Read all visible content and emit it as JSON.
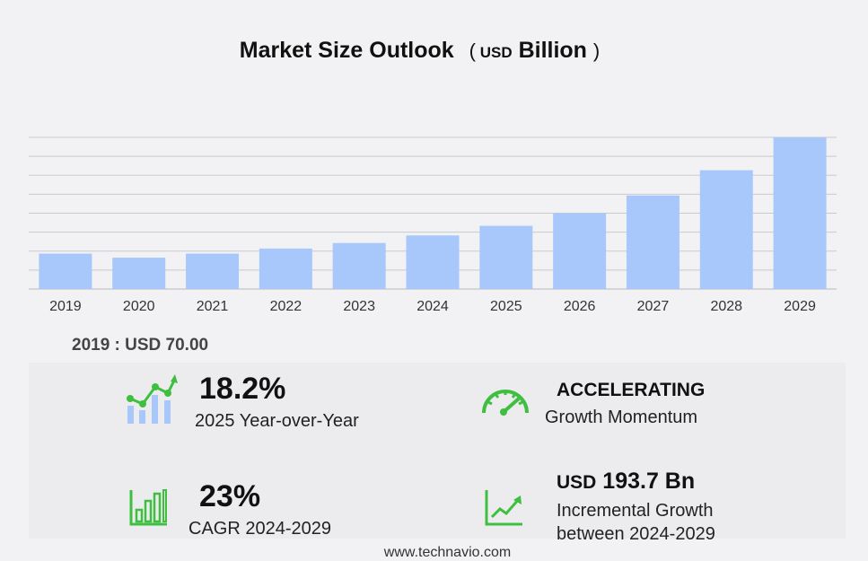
{
  "title": {
    "main": "Market Size Outlook",
    "open_paren": "(",
    "unit_small": "USD",
    "unit_big": "Billion",
    "close_paren": ")"
  },
  "chart_data": {
    "type": "bar",
    "categories": [
      "2019",
      "2020",
      "2021",
      "2022",
      "2023",
      "2024",
      "2025",
      "2026",
      "2027",
      "2028",
      "2029"
    ],
    "values": [
      70.0,
      62.0,
      70.0,
      80.0,
      91.0,
      106.0,
      125.0,
      150.0,
      185.0,
      235.0,
      300.0
    ],
    "ylim": [
      0,
      300
    ],
    "grid": true,
    "bar_color": "#a8c8fb",
    "grid_color": "#c9c9d0"
  },
  "base_year_label": "2019 : USD  70.00",
  "stats": {
    "yoy": {
      "value": "18.2%",
      "label": "2025 Year-over-Year",
      "icon": "growth-bar-chart-icon"
    },
    "momentum": {
      "value": "ACCELERATING",
      "label": "Growth Momentum",
      "icon": "speedometer-icon"
    },
    "cagr": {
      "value": "23%",
      "label": "CAGR 2024-2029",
      "icon": "bar-chart-frame-icon"
    },
    "incremental": {
      "currency": "USD",
      "value": "193.7 Bn",
      "label_line1": "Incremental Growth",
      "label_line2": "between 2024-2029",
      "icon": "trend-line-chart-icon"
    }
  },
  "icon_color": "#3fbf3f",
  "footer": "www.technavio.com"
}
